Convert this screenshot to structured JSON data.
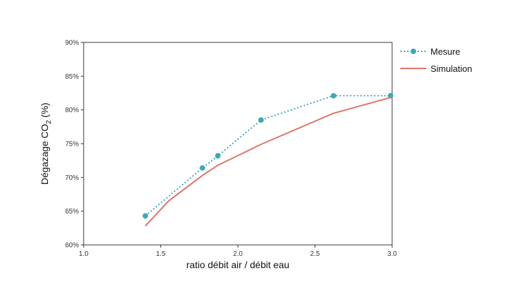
{
  "chart_data": {
    "type": "line",
    "xlabel": "ratio débit air / débit eau",
    "ylabel": {
      "main": "Dégazage CO",
      "sub": "2",
      "suffix": " (%)"
    },
    "xlim": [
      1.0,
      3.0
    ],
    "ylim": [
      0.6,
      0.9
    ],
    "x_ticks": [
      {
        "value": 1.0,
        "label": "1.0"
      },
      {
        "value": 1.5,
        "label": "1.5"
      },
      {
        "value": 2.0,
        "label": "2.0"
      },
      {
        "value": 2.5,
        "label": "2.5"
      },
      {
        "value": 3.0,
        "label": "3.0"
      }
    ],
    "y_ticks": [
      {
        "value": 0.6,
        "label": "60%"
      },
      {
        "value": 0.65,
        "label": "65%"
      },
      {
        "value": 0.7,
        "label": "70%"
      },
      {
        "value": 0.75,
        "label": "75%"
      },
      {
        "value": 0.8,
        "label": "80%"
      },
      {
        "value": 0.85,
        "label": "85%"
      },
      {
        "value": 0.9,
        "label": "90%"
      }
    ],
    "grid": false,
    "legend_position": "right",
    "series": [
      {
        "name": "Mesure",
        "style": "dotted-markers",
        "color": "#3aa9b8",
        "x": [
          1.4,
          1.77,
          1.87,
          2.15,
          2.62,
          2.99
        ],
        "y": [
          0.643,
          0.714,
          0.732,
          0.785,
          0.821,
          0.821
        ]
      },
      {
        "name": "Simulation",
        "style": "solid",
        "color": "#e07366",
        "x": [
          1.4,
          1.55,
          1.77,
          1.87,
          2.15,
          2.62,
          3.0
        ],
        "y": [
          0.628,
          0.665,
          0.703,
          0.718,
          0.749,
          0.795,
          0.819
        ]
      }
    ]
  }
}
